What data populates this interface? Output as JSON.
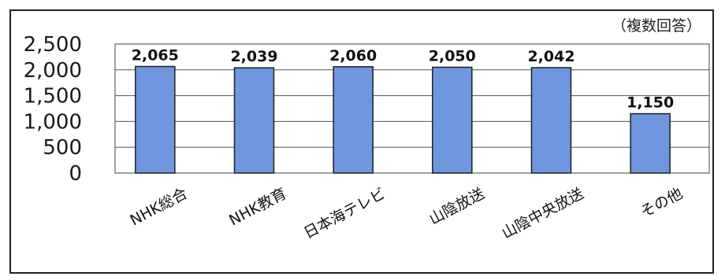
{
  "chart_data": {
    "type": "bar",
    "note": "（複数回答）",
    "categories": [
      "NHK総合",
      "NHK教育",
      "日本海テレビ",
      "山陰放送",
      "山陰中央放送",
      "その他"
    ],
    "values": [
      2065,
      2039,
      2060,
      2050,
      2042,
      1150
    ],
    "data_labels": [
      "2,065",
      "2,039",
      "2,060",
      "2,050",
      "2,042",
      "1,150"
    ],
    "y_ticks": [
      0,
      500,
      1000,
      1500,
      2000,
      2500
    ],
    "y_tick_labels": [
      "0",
      "500",
      "1,000",
      "1,500",
      "2,000",
      "2,500"
    ],
    "ylim": [
      0,
      2500
    ],
    "grid": true,
    "bar_color": "#6f97e0",
    "bar_edge_color": "#1f1f1f",
    "grid_color": "#555555"
  }
}
